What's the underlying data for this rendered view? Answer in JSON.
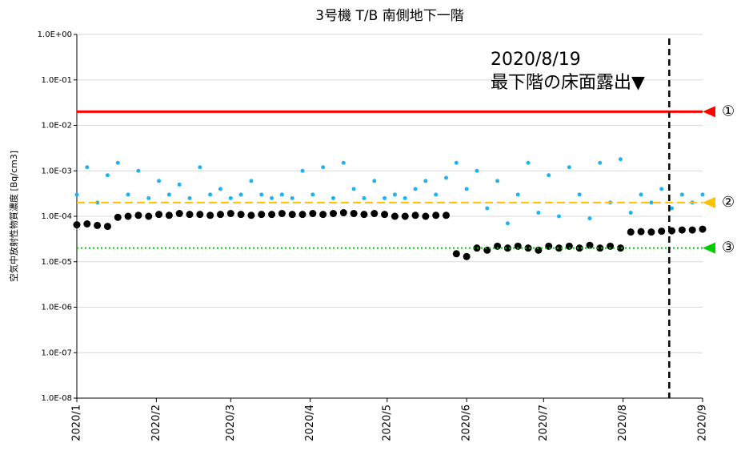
{
  "chart_data": {
    "type": "scatter",
    "title": "3号機  T/B  南側地下一階",
    "y_label": "空気中放射性物質濃度 [Bq/cm3]",
    "log_y": true,
    "grid": true,
    "xlim": [
      0,
      244
    ],
    "xticks": [
      {
        "value": 0,
        "label": "2020/1"
      },
      {
        "value": 31,
        "label": "2020/2"
      },
      {
        "value": 60,
        "label": "2020/3"
      },
      {
        "value": 91,
        "label": "2020/4"
      },
      {
        "value": 121,
        "label": "2020/5"
      },
      {
        "value": 152,
        "label": "2020/6"
      },
      {
        "value": 182,
        "label": "2020/7"
      },
      {
        "value": 213,
        "label": "2020/8"
      },
      {
        "value": 244,
        "label": "2020/9"
      }
    ],
    "ylim": [
      1e-08,
      1
    ],
    "yticks": [
      {
        "value": 1,
        "label": "1.0E+00"
      },
      {
        "value": 0.1,
        "label": "1.0E-01"
      },
      {
        "value": 0.01,
        "label": "1.0E-02"
      },
      {
        "value": 0.001,
        "label": "1.0E-03"
      },
      {
        "value": 0.0001,
        "label": "1.0E-04"
      },
      {
        "value": 1e-05,
        "label": "1.0E-05"
      },
      {
        "value": 1e-06,
        "label": "1.0E-06"
      },
      {
        "value": 1e-07,
        "label": "1.0E-07"
      },
      {
        "value": 1e-08,
        "label": "1.0E-08"
      }
    ],
    "x": [
      0,
      4,
      8,
      12,
      16,
      20,
      24,
      28,
      32,
      36,
      40,
      44,
      48,
      52,
      56,
      60,
      64,
      68,
      72,
      76,
      80,
      84,
      88,
      92,
      96,
      100,
      104,
      108,
      112,
      116,
      120,
      124,
      128,
      132,
      136,
      140,
      144,
      148,
      152,
      156,
      160,
      164,
      168,
      172,
      176,
      180,
      184,
      188,
      192,
      196,
      200,
      204,
      208,
      212,
      216,
      220,
      224,
      228,
      232,
      236,
      240,
      244
    ],
    "series": [
      {
        "color": "#1fb3f0",
        "values": [
          0.0003,
          0.0012,
          0.0002,
          0.0008,
          0.0015,
          0.0003,
          0.001,
          0.00025,
          0.0006,
          0.0003,
          0.0005,
          0.00025,
          0.0012,
          0.0003,
          0.0004,
          0.00025,
          0.0003,
          0.0006,
          0.0003,
          0.00025,
          0.0003,
          0.00025,
          0.001,
          0.0003,
          0.0012,
          0.00025,
          0.0015,
          0.0004,
          0.00025,
          0.0006,
          0.00025,
          0.0003,
          0.00025,
          0.0004,
          0.0006,
          0.0003,
          0.0007,
          0.0015,
          0.0004,
          0.001,
          0.00015,
          0.0006,
          7e-05,
          0.0003,
          0.0015,
          0.00012,
          0.0008,
          0.0001,
          0.0012,
          0.0003,
          9e-05,
          0.0015,
          0.0002,
          0.0018,
          0.00012,
          0.0003,
          0.0002,
          0.0004,
          0.00015,
          0.0003,
          0.0002,
          0.0003
        ]
      },
      {
        "color": "#000000",
        "values": [
          6.5e-05,
          6.8e-05,
          6.3e-05,
          6e-05,
          9.5e-05,
          0.0001,
          0.000105,
          0.0001,
          0.00011,
          0.000105,
          0.000115,
          0.00011,
          0.00011,
          0.000105,
          0.00011,
          0.000115,
          0.00011,
          0.000105,
          0.00011,
          0.00011,
          0.000115,
          0.00011,
          0.00011,
          0.000115,
          0.00011,
          0.000115,
          0.00012,
          0.000115,
          0.00011,
          0.000115,
          0.00011,
          0.0001,
          0.0001,
          0.000105,
          0.0001,
          0.000105,
          0.000105,
          1.5e-05,
          1.3e-05,
          2e-05,
          1.8e-05,
          2.2e-05,
          2e-05,
          2.2e-05,
          2e-05,
          1.8e-05,
          2.2e-05,
          2e-05,
          2.2e-05,
          2e-05,
          2.3e-05,
          2e-05,
          2.2e-05,
          2e-05,
          4.5e-05,
          4.6e-05,
          4.5e-05,
          4.7e-05,
          4.8e-05,
          5e-05,
          5e-05,
          5.2e-05
        ]
      }
    ],
    "reference_lines": [
      {
        "value": 0.02,
        "label": "①",
        "color": "#ff0000",
        "style": "solid"
      },
      {
        "value": 0.0002,
        "label": "②",
        "color": "#ffc000",
        "style": "dashed"
      },
      {
        "value": 2e-05,
        "label": "③",
        "color": "#00cc00",
        "style": "dotted"
      }
    ],
    "annotation": {
      "x": 231,
      "lines": [
        "2020/8/19",
        "最下階の床面露出▼"
      ]
    }
  }
}
